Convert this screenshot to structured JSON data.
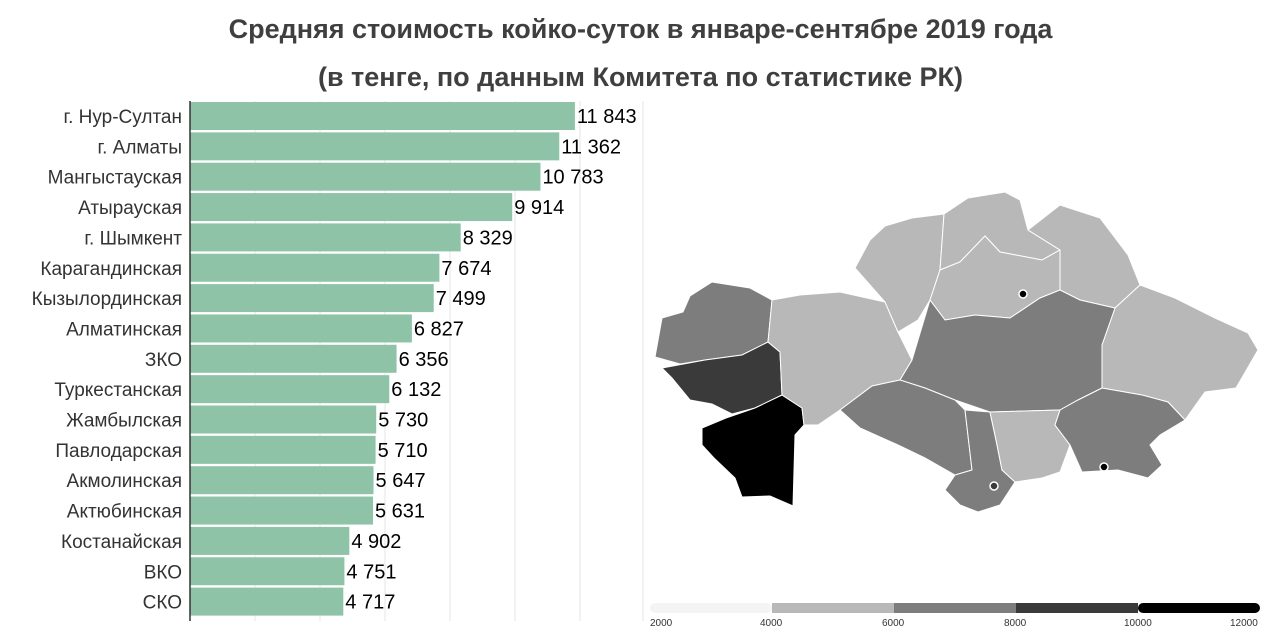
{
  "header": {
    "title_line_1": "Средняя стоимость койко-суток в январе-сентябре 2019 года",
    "title_line_2": "(в тенге, по данным Комитета по статистике РК)"
  },
  "colors": {
    "bar": "#8ec3a7",
    "axis": "#333333",
    "grid": "#e6e6e6",
    "map_border": "#ffffff"
  },
  "chart_data": {
    "type": "bar",
    "orientation": "horizontal",
    "title": "Средняя стоимость койко-суток в январе-сентябре 2019 года (в тенге, по данным Комитета по статистике РК)",
    "xlim": [
      0,
      13000
    ],
    "grid": true,
    "categories": [
      "г. Нур-Султан",
      "г. Алматы",
      "Мангыстауская",
      "Атырауская",
      "г. Шымкент",
      "Карагандинская",
      "Кызылординская",
      "Алматинская",
      "ЗКО",
      "Туркестанская",
      "Жамбылская",
      "Павлодарская",
      "Акмолинская",
      "Актюбинская",
      "Костанайская",
      "ВКО",
      "СКО"
    ],
    "values": [
      11843,
      11362,
      10783,
      9914,
      8329,
      7674,
      7499,
      6827,
      6356,
      6132,
      5730,
      5710,
      5647,
      5631,
      4902,
      4751,
      4717
    ],
    "value_labels": [
      "11 843",
      "11 362",
      "10 783",
      "9 914",
      "8 329",
      "7 674",
      "7 499",
      "6 827",
      "6 356",
      "6 132",
      "5 730",
      "5 710",
      "5 647",
      "5 631",
      "4 902",
      "4 751",
      "4 717"
    ]
  },
  "map": {
    "type": "choropleth",
    "legend": {
      "ticks": [
        "2000",
        "4000",
        "6000",
        "8000",
        "10000",
        "12000"
      ],
      "colors": [
        "#f4f4f4",
        "#b8b8b8",
        "#7d7d7d",
        "#3a3a3a",
        "#000000"
      ]
    },
    "regions": [
      {
        "name": "ЗКО",
        "value": 6356
      },
      {
        "name": "Атырауская",
        "value": 9914
      },
      {
        "name": "Мангыстауская",
        "value": 10783
      },
      {
        "name": "Актюбинская",
        "value": 5631
      },
      {
        "name": "Костанайская",
        "value": 4902
      },
      {
        "name": "СКО",
        "value": 4717
      },
      {
        "name": "Акмолинская",
        "value": 5647
      },
      {
        "name": "г. Нур-Султан",
        "value": 11843
      },
      {
        "name": "Павлодарская",
        "value": 5710
      },
      {
        "name": "ВКО",
        "value": 4751
      },
      {
        "name": "Карагандинская",
        "value": 7674
      },
      {
        "name": "Кызылординская",
        "value": 7499
      },
      {
        "name": "Туркестанская",
        "value": 6132
      },
      {
        "name": "г. Шымкент",
        "value": 8329
      },
      {
        "name": "Жамбылская",
        "value": 5730
      },
      {
        "name": "Алматинская",
        "value": 6827
      },
      {
        "name": "г. Алматы",
        "value": 11362
      }
    ]
  }
}
